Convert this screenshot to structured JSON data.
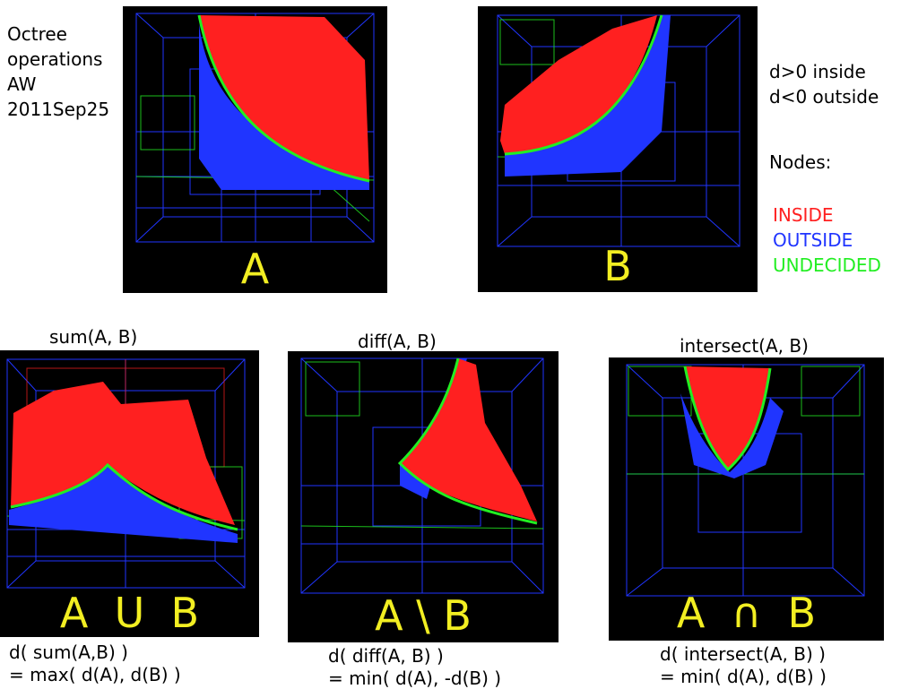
{
  "title": {
    "lines": [
      "Octree",
      "operations",
      "AW",
      "2011Sep25"
    ]
  },
  "legend": {
    "sign_lines": [
      "d>0 inside",
      "d<0 outside"
    ],
    "nodes_label": "Nodes:",
    "inside": "INSIDE",
    "outside": "OUTSIDE",
    "undecided": "UNDECIDED",
    "colors": {
      "inside": "#ff2020",
      "outside": "#2035ff",
      "undecided": "#22ee22"
    }
  },
  "panels": {
    "a": {
      "label": "A"
    },
    "b": {
      "label": "B"
    },
    "sum": {
      "caption": "sum(A, B)",
      "label": "A  U  B",
      "formula_1": "d( sum(A,B) )",
      "formula_2": "= max( d(A), d(B) )"
    },
    "diff": {
      "caption": "diff(A, B)",
      "label": "A \\ B",
      "formula_1": "d( diff(A, B) )",
      "formula_2": "= min( d(A), -d(B) )"
    },
    "intersect": {
      "caption": "intersect(A, B)",
      "label": "A  ∩  B",
      "formula_1": "d( intersect(A, B) )",
      "formula_2": "= min( d(A), d(B) )"
    }
  }
}
